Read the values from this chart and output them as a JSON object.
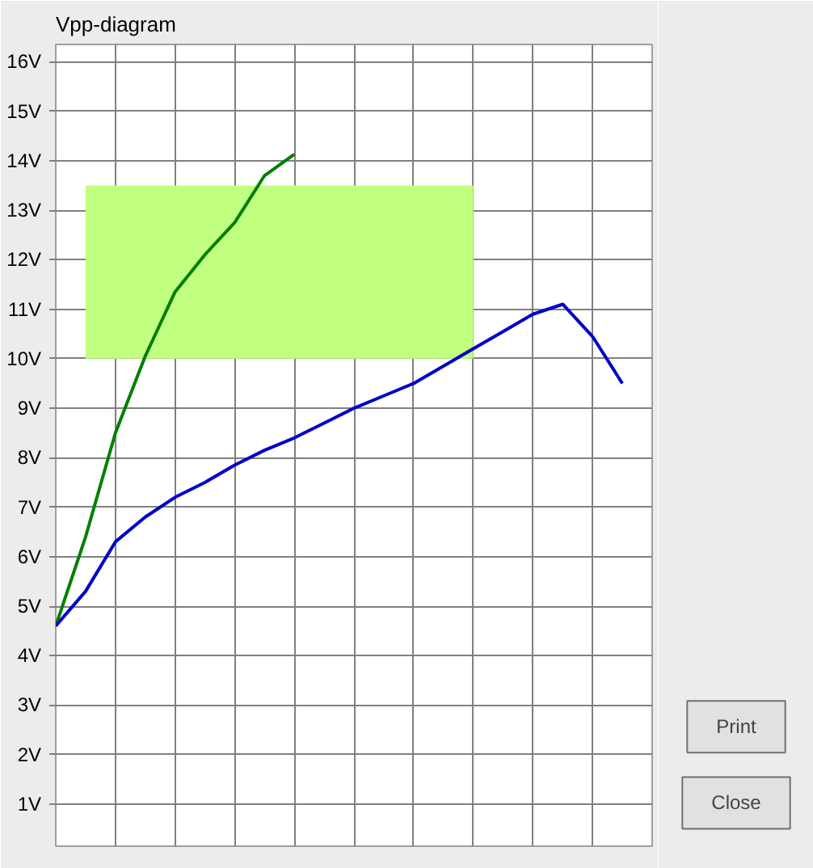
{
  "chart_data": {
    "type": "line",
    "title": "Vpp-diagram",
    "categories": [
      null,
      null,
      null,
      null,
      null,
      null,
      null,
      null,
      null,
      null,
      null,
      null,
      null,
      null,
      null,
      null,
      null,
      null,
      null,
      null,
      null
    ],
    "series": [
      {
        "color": "#c0ff80",
        "values": [
          null,
          null,
          null,
          null,
          null,
          null,
          null,
          null,
          null,
          null,
          null,
          null,
          null,
          null,
          null,
          null,
          null,
          null,
          null,
          null,
          null
        ],
        "lower": [
          null,
          10,
          10,
          10,
          10,
          10,
          10,
          10,
          10,
          10,
          10,
          10,
          10,
          10,
          10,
          null,
          null,
          null,
          null,
          null,
          null
        ],
        "upper": [
          null,
          13.5,
          13.5,
          13.5,
          13.5,
          13.5,
          13.5,
          13.5,
          13.5,
          13.5,
          13.5,
          13.5,
          13.5,
          13.5,
          13.5,
          null,
          null,
          null,
          null,
          null,
          null
        ]
      },
      {
        "color": "#008000",
        "values": [
          4.6,
          6.4,
          8.5,
          10.05,
          11.35,
          12.1,
          12.75,
          13.7,
          14.13,
          null,
          null,
          null,
          null,
          null,
          null,
          null,
          null,
          null,
          null,
          null,
          null
        ]
      },
      {
        "color": "#0000c8",
        "values": [
          4.6,
          5.3,
          6.3,
          6.8,
          7.2,
          7.5,
          7.85,
          8.15,
          8.4,
          8.7,
          9.0,
          9.25,
          9.5,
          9.85,
          10.2,
          10.55,
          10.9,
          11.1,
          10.45,
          9.5,
          null
        ]
      }
    ],
    "ylim": [
      0.15,
      16.35
    ],
    "yticks": [
      {
        "value": 1,
        "label": "1V"
      },
      {
        "value": 2,
        "label": "2V"
      },
      {
        "value": 3,
        "label": "3V"
      },
      {
        "value": 4,
        "label": "4V"
      },
      {
        "value": 5,
        "label": "5V"
      },
      {
        "value": 6,
        "label": "6V"
      },
      {
        "value": 7,
        "label": "7V"
      },
      {
        "value": 8,
        "label": "8V"
      },
      {
        "value": 9,
        "label": "9V"
      },
      {
        "value": 10,
        "label": "10V"
      },
      {
        "value": 11,
        "label": "11V"
      },
      {
        "value": 12,
        "label": "12V"
      },
      {
        "value": 13,
        "label": "13V"
      },
      {
        "value": 14,
        "label": "14V"
      },
      {
        "value": 15,
        "label": "15V"
      },
      {
        "value": 16,
        "label": "16V"
      }
    ],
    "grid": true,
    "line_style": "solid",
    "annotations": [
      "Print",
      "Close"
    ]
  }
}
